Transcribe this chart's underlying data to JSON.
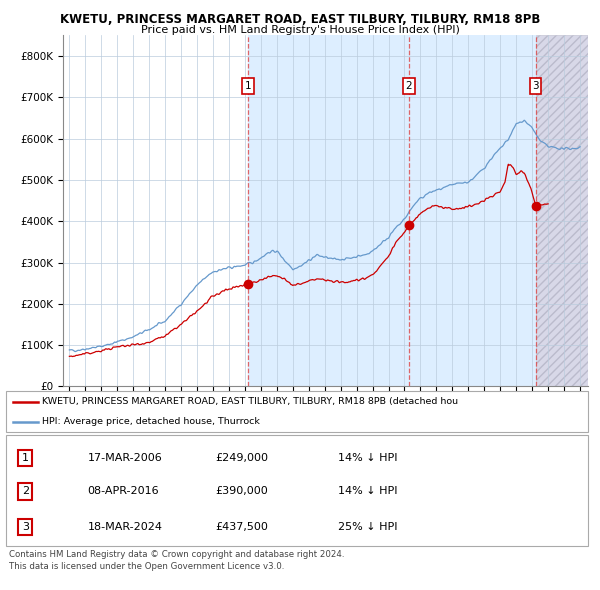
{
  "title1": "KWETU, PRINCESS MARGARET ROAD, EAST TILBURY, TILBURY, RM18 8PB",
  "title2": "Price paid vs. HM Land Registry's House Price Index (HPI)",
  "xlim_start": 1994.6,
  "xlim_end": 2027.5,
  "ylim_min": 0,
  "ylim_max": 850000,
  "yticks": [
    0,
    100000,
    200000,
    300000,
    400000,
    500000,
    600000,
    700000,
    800000
  ],
  "ytick_labels": [
    "£0",
    "£100K",
    "£200K",
    "£300K",
    "£400K",
    "£500K",
    "£600K",
    "£700K",
    "£800K"
  ],
  "sale1_x": 2006.21,
  "sale1_y": 249000,
  "sale2_x": 2016.27,
  "sale2_y": 390000,
  "sale3_x": 2024.21,
  "sale3_y": 437500,
  "shaded_start": 2006.21,
  "shaded_end": 2024.21,
  "hatch_start": 2024.21,
  "legend_line1": "KWETU, PRINCESS MARGARET ROAD, EAST TILBURY, TILBURY, RM18 8PB (detached hou",
  "legend_line2": "HPI: Average price, detached house, Thurrock",
  "table_data": [
    [
      "1",
      "17-MAR-2006",
      "£249,000",
      "14% ↓ HPI"
    ],
    [
      "2",
      "08-APR-2016",
      "£390,000",
      "14% ↓ HPI"
    ],
    [
      "3",
      "18-MAR-2024",
      "£437,500",
      "25% ↓ HPI"
    ]
  ],
  "footnote1": "Contains HM Land Registry data © Crown copyright and database right 2024.",
  "footnote2": "This data is licensed under the Open Government Licence v3.0.",
  "red_color": "#cc0000",
  "blue_color": "#6699cc",
  "shaded_color": "#ddeeff",
  "hatch_color": "#d8d8e8"
}
